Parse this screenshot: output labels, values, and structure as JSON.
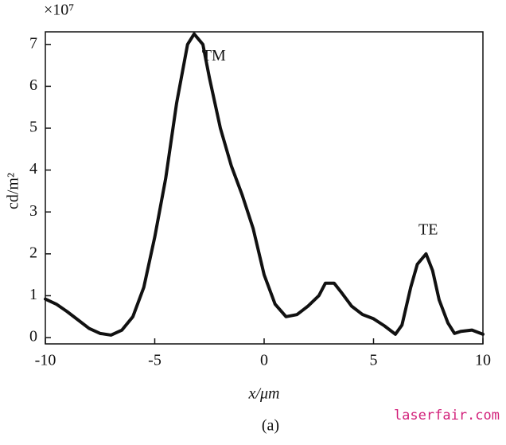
{
  "chart_data": {
    "type": "line",
    "exponent_label": "×10⁷",
    "ylabel": "cd/m²",
    "xlabel": "x/μm",
    "caption": "(a)",
    "watermark": "laserfair.com",
    "annotations": [
      {
        "text": "TM",
        "x": -2.3,
        "y": 6.7
      },
      {
        "text": "TE",
        "x": 7.5,
        "y": 2.55
      }
    ],
    "x": [
      -10,
      -9.5,
      -9,
      -8.5,
      -8,
      -7.5,
      -7,
      -6.5,
      -6,
      -5.5,
      -5,
      -4.5,
      -4,
      -3.5,
      -3.2,
      -2.8,
      -2.5,
      -2,
      -1.5,
      -1,
      -0.5,
      0,
      0.5,
      1,
      1.5,
      2,
      2.5,
      2.8,
      3.2,
      3.5,
      4,
      4.5,
      5,
      5.5,
      6,
      6.3,
      6.7,
      7,
      7.4,
      7.7,
      8,
      8.4,
      8.7,
      9,
      9.5,
      10
    ],
    "series": [
      {
        "color": "#111111",
        "values": [
          0.92,
          0.8,
          0.62,
          0.42,
          0.22,
          0.1,
          0.06,
          0.18,
          0.5,
          1.2,
          2.4,
          3.8,
          5.6,
          7.0,
          7.25,
          7.0,
          6.2,
          5.0,
          4.1,
          3.4,
          2.6,
          1.5,
          0.8,
          0.5,
          0.55,
          0.75,
          1.0,
          1.3,
          1.3,
          1.1,
          0.75,
          0.55,
          0.45,
          0.28,
          0.08,
          0.3,
          1.2,
          1.75,
          2.0,
          1.6,
          0.9,
          0.35,
          0.1,
          0.15,
          0.18,
          0.08
        ]
      }
    ],
    "xlim": [
      -10,
      10
    ],
    "xticks": [
      -10,
      -5,
      0,
      5,
      10
    ],
    "ylim": [
      -0.15,
      7.3
    ],
    "yticks": [
      0,
      1,
      2,
      3,
      4,
      5,
      6,
      7
    ]
  }
}
